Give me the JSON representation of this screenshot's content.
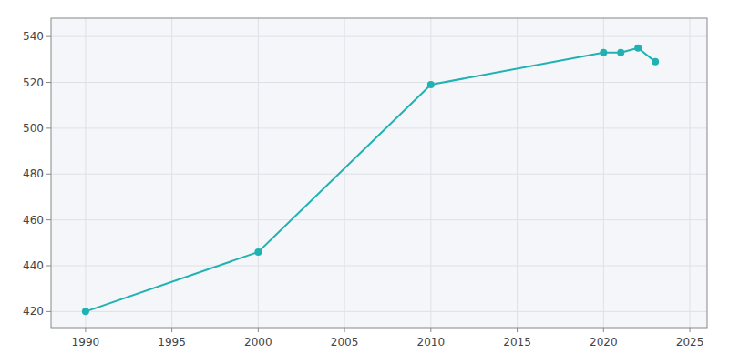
{
  "chart_data": {
    "type": "line",
    "x": [
      1990,
      2000,
      2010,
      2020,
      2021,
      2022,
      2023
    ],
    "values": [
      420,
      446,
      519,
      533,
      533,
      535,
      529
    ],
    "color": "#20b2b2",
    "marker": "circle",
    "xlim": [
      1988,
      2026
    ],
    "ylim": [
      413,
      548
    ],
    "xticks": [
      1990,
      1995,
      2000,
      2005,
      2010,
      2015,
      2020,
      2025
    ],
    "yticks": [
      420,
      440,
      460,
      480,
      500,
      520,
      540
    ],
    "grid": true
  }
}
